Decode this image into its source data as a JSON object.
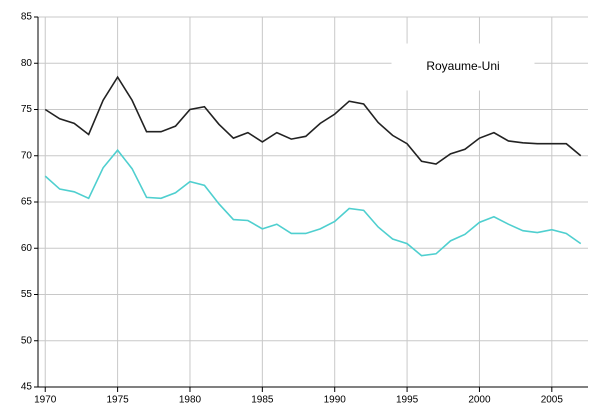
{
  "chart_data": {
    "type": "line",
    "annotation": "Royaume-Uni",
    "x": [
      1970,
      1971,
      1972,
      1973,
      1974,
      1975,
      1976,
      1977,
      1978,
      1979,
      1980,
      1981,
      1982,
      1983,
      1984,
      1985,
      1986,
      1987,
      1988,
      1989,
      1990,
      1991,
      1992,
      1993,
      1994,
      1995,
      1996,
      1997,
      1998,
      1999,
      2000,
      2001,
      2002,
      2003,
      2004,
      2005,
      2006,
      2007
    ],
    "series": [
      {
        "color": "#222222",
        "values": [
          75,
          74,
          73.5,
          72.3,
          76,
          78.5,
          76,
          72.6,
          72.6,
          73.2,
          75,
          75.3,
          73.4,
          71.9,
          72.5,
          71.5,
          72.5,
          71.8,
          72.1,
          73.5,
          74.5,
          75.9,
          75.6,
          73.6,
          72.2,
          71.3,
          69.4,
          69.1,
          70.2,
          70.7,
          71.9,
          72.5,
          71.6,
          71.4,
          71.3,
          71.3,
          71.3,
          70
        ]
      },
      {
        "color": "#4fcfcf",
        "values": [
          67.8,
          66.4,
          66.1,
          65.4,
          68.7,
          70.6,
          68.6,
          65.5,
          65.4,
          66,
          67.2,
          66.8,
          64.8,
          63.1,
          63,
          62.1,
          62.6,
          61.6,
          61.6,
          62.1,
          62.9,
          64.3,
          64.1,
          62.3,
          61,
          60.5,
          59.2,
          59.4,
          60.8,
          61.5,
          62.8,
          63.4,
          62.6,
          61.9,
          61.7,
          62,
          61.6,
          60.5
        ]
      }
    ],
    "xlim": [
      1969.5,
      2007.5
    ],
    "xticks": [
      1970,
      1975,
      1980,
      1985,
      1990,
      1995,
      2000,
      2005
    ],
    "ylim": [
      45,
      85
    ],
    "yticks": [
      45,
      50,
      55,
      60,
      65,
      70,
      75,
      80,
      85
    ],
    "grid": true
  }
}
